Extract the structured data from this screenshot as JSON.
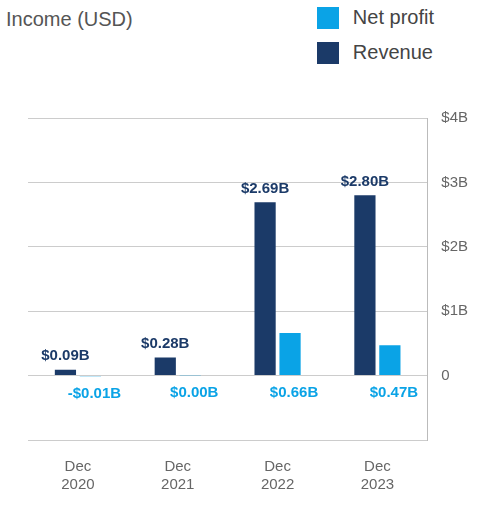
{
  "chart_data": {
    "type": "bar",
    "title": "Income (USD)",
    "categories": [
      "Dec 2020",
      "Dec 2021",
      "Dec 2022",
      "Dec 2023"
    ],
    "series": [
      {
        "name": "Revenue",
        "color": "#1b3a68",
        "values": [
          0.09,
          0.28,
          2.69,
          2.8
        ],
        "value_labels": [
          "$0.09B",
          "$0.28B",
          "$2.69B",
          "$2.80B"
        ]
      },
      {
        "name": "Net profit",
        "color": "#0aa3e6",
        "values": [
          -0.01,
          0.004,
          0.66,
          0.47
        ],
        "value_labels": [
          "-$0.01B",
          "$0.00B",
          "$0.66B",
          "$0.47B"
        ]
      }
    ],
    "ylim": [
      -1,
      4
    ],
    "yticks": [
      0,
      {
        "value": 1,
        "label": "$1B"
      },
      {
        "value": 2,
        "label": "$2B"
      },
      {
        "value": 3,
        "label": "$3B"
      },
      {
        "value": 4,
        "label": "$4B"
      }
    ],
    "grid": true,
    "legend": "top-right",
    "data_labels": true
  }
}
